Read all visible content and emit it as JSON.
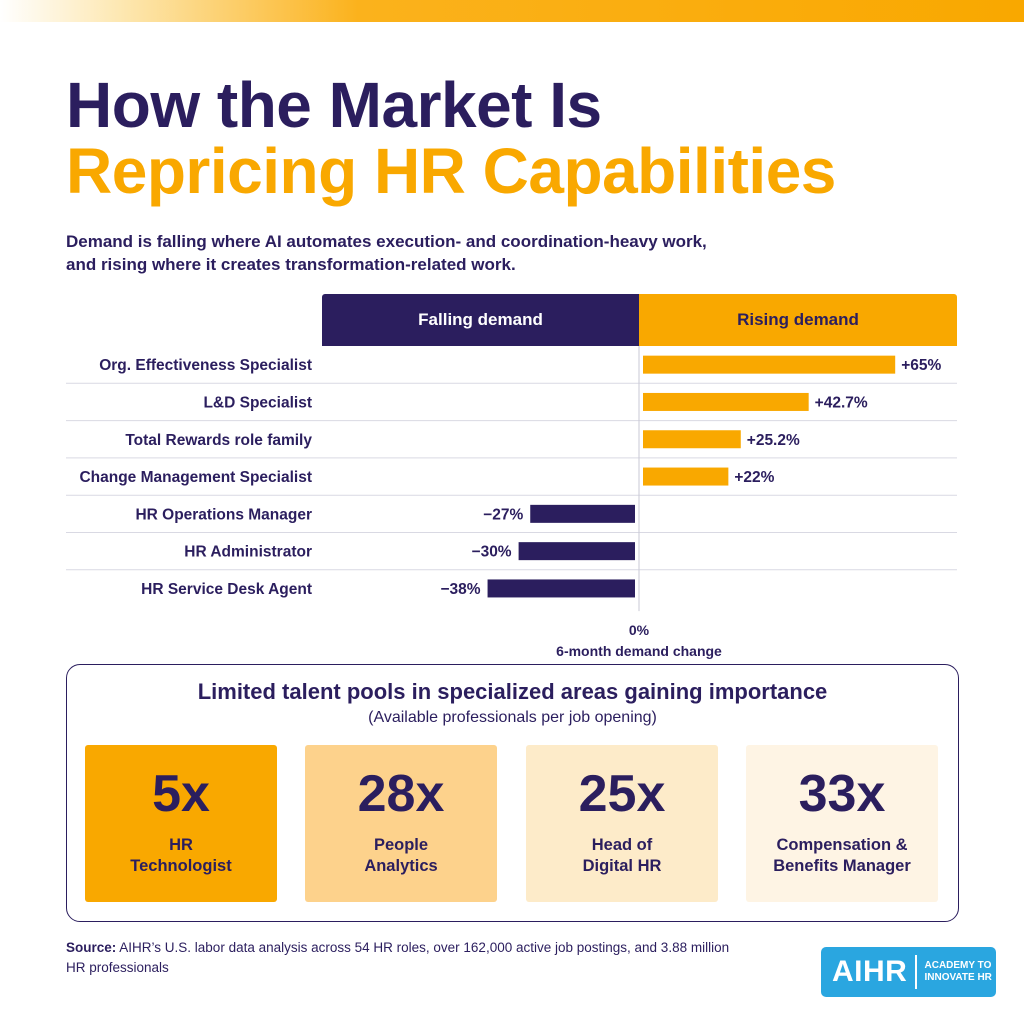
{
  "header": {
    "title_line1": "How the Market Is",
    "title_line2": "Repricing HR Capabilities",
    "subtitle_line1": "Demand is falling where AI automates execution- and coordination-heavy work,",
    "subtitle_line2": "and rising where it creates transformation-related work."
  },
  "colors": {
    "navy": "#2b1e5e",
    "accent": "#f9a800"
  },
  "chart_data": {
    "type": "bar",
    "orientation": "horizontal-diverging",
    "headers": {
      "falling": "Falling demand",
      "rising": "Rising demand"
    },
    "categories": [
      "Org. Effectiveness Specialist",
      "L&D Specialist",
      "Total Rewards role family",
      "Change Management Specialist",
      "HR Operations Manager",
      "HR Administrator",
      "HR Service Desk Agent"
    ],
    "values": [
      65,
      42.7,
      25.2,
      22,
      -27,
      -30,
      -38
    ],
    "value_labels": [
      "+65%",
      "+42.7%",
      "+25.2%",
      "+22%",
      "−27%",
      "−30%",
      "−38%"
    ],
    "zero_label": "0%",
    "xlabel": "6-month demand change",
    "xlim": [
      -82,
      82
    ],
    "grid": "row separators"
  },
  "talent": {
    "title": "Limited talent pools in specialized areas gaining importance",
    "subtitle": "(Available professionals per job opening)",
    "cards": [
      {
        "value": "5x",
        "role_line1": "HR",
        "role_line2": "Technologist",
        "color": "#f9a800"
      },
      {
        "value": "28x",
        "role_line1": "People",
        "role_line2": "Analytics",
        "color": "#fdd28c"
      },
      {
        "value": "25x",
        "role_line1": "Head of",
        "role_line2": "Digital HR",
        "color": "#fdebc9"
      },
      {
        "value": "33x",
        "role_line1": "Compensation &",
        "role_line2": "Benefits Manager",
        "color": "#fef4e4"
      }
    ]
  },
  "footer": {
    "source_label": "Source:",
    "source_text": "AIHR’s U.S. labor data analysis across 54 HR roles, over 162,000 active job postings, and 3.88 million HR professionals",
    "logo_mark": "AIHR",
    "logo_tag_line1": "ACADEMY TO",
    "logo_tag_line2": "INNOVATE HR"
  }
}
